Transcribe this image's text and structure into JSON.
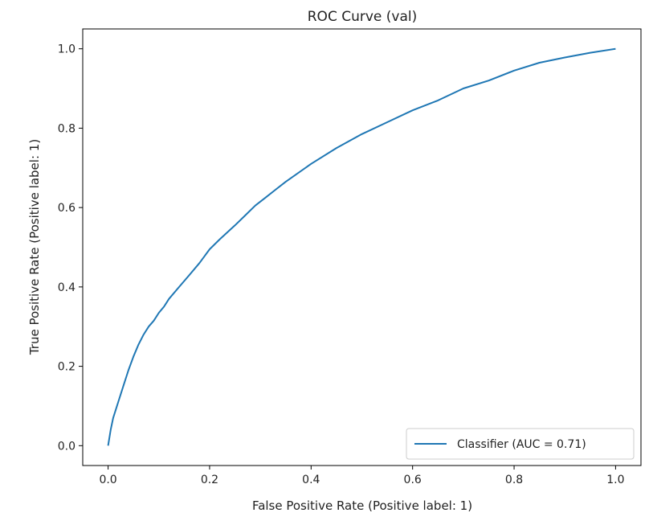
{
  "chart_data": {
    "type": "line",
    "title": "ROC Curve (val)",
    "xlabel": "False Positive Rate (Positive label: 1)",
    "ylabel": "True Positive Rate (Positive label: 1)",
    "xlim": [
      -0.05,
      1.05
    ],
    "ylim": [
      -0.05,
      1.05
    ],
    "xticks": [
      0.0,
      0.2,
      0.4,
      0.6,
      0.8,
      1.0
    ],
    "yticks": [
      0.0,
      0.2,
      0.4,
      0.6,
      0.8,
      1.0
    ],
    "xtick_labels": [
      "0.0",
      "0.2",
      "0.4",
      "0.6",
      "0.8",
      "1.0"
    ],
    "ytick_labels": [
      "0.0",
      "0.2",
      "0.4",
      "0.6",
      "0.8",
      "1.0"
    ],
    "grid": false,
    "legend_position": "lower-right",
    "series": [
      {
        "name": "Classifier (AUC = 0.71)",
        "color": "#1f77b4",
        "x": [
          0.0,
          0.005,
          0.01,
          0.02,
          0.03,
          0.04,
          0.05,
          0.06,
          0.07,
          0.08,
          0.09,
          0.1,
          0.11,
          0.12,
          0.14,
          0.16,
          0.18,
          0.2,
          0.22,
          0.25,
          0.27,
          0.29,
          0.31,
          0.33,
          0.35,
          0.4,
          0.45,
          0.5,
          0.55,
          0.6,
          0.65,
          0.7,
          0.75,
          0.8,
          0.85,
          0.9,
          0.95,
          1.0
        ],
        "y": [
          0.0,
          0.04,
          0.07,
          0.11,
          0.15,
          0.19,
          0.225,
          0.255,
          0.28,
          0.3,
          0.315,
          0.335,
          0.35,
          0.37,
          0.4,
          0.43,
          0.46,
          0.495,
          0.52,
          0.555,
          0.58,
          0.605,
          0.625,
          0.645,
          0.665,
          0.71,
          0.75,
          0.785,
          0.815,
          0.845,
          0.87,
          0.9,
          0.92,
          0.945,
          0.965,
          0.978,
          0.99,
          1.0
        ]
      }
    ]
  }
}
